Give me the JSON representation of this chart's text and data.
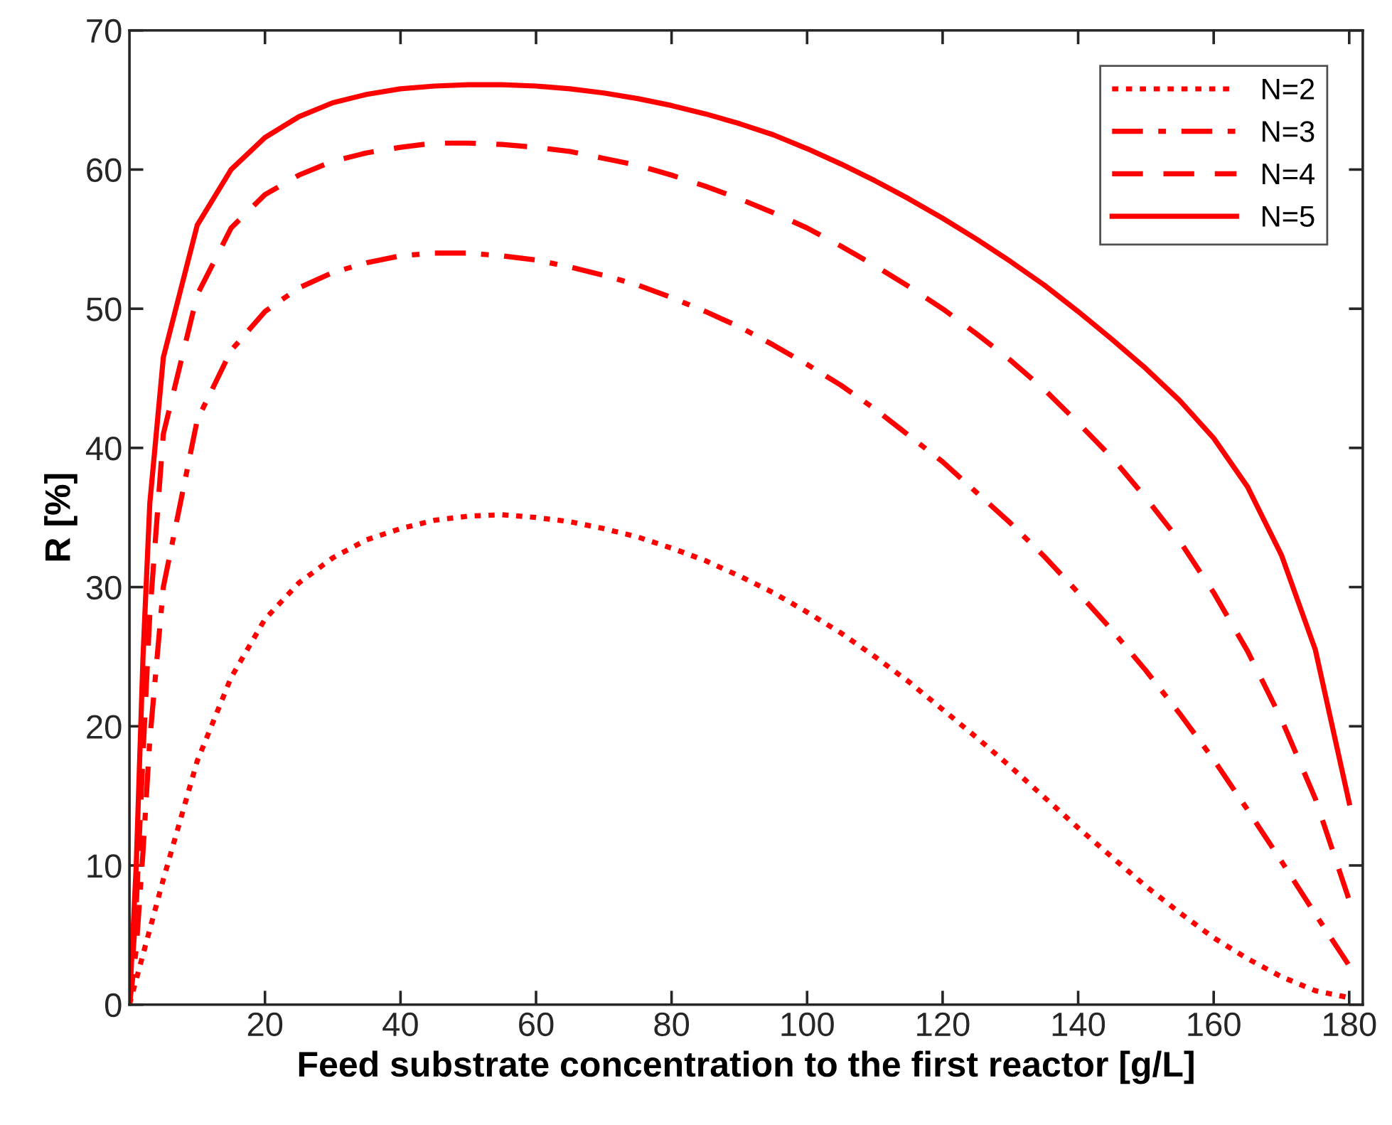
{
  "chart_data": {
    "type": "line",
    "xlabel": "Feed substrate concentration to the first reactor [g/L]",
    "ylabel": "R [%]",
    "xlim": [
      0,
      182
    ],
    "xticks": [
      20,
      40,
      60,
      80,
      100,
      120,
      140,
      160,
      180
    ],
    "ylim": [
      0,
      70
    ],
    "yticks": [
      0,
      10,
      20,
      30,
      40,
      50,
      60,
      70
    ],
    "grid": false,
    "legend": "top right",
    "marker": "none",
    "x": [
      0,
      1,
      2,
      3,
      5,
      10,
      15,
      20,
      25,
      30,
      35,
      40,
      45,
      50,
      55,
      60,
      65,
      70,
      75,
      80,
      85,
      90,
      95,
      100,
      105,
      110,
      115,
      120,
      125,
      130,
      135,
      140,
      145,
      150,
      155,
      160,
      165,
      170,
      175,
      180
    ],
    "series": [
      {
        "name": "N=2",
        "color": "#ff0000",
        "line_style": "dotted",
        "values": [
          0,
          1.8,
          3.6,
          5.4,
          9,
          17.5,
          23.5,
          27.7,
          30.3,
          32.1,
          33.4,
          34.2,
          34.8,
          35.1,
          35.2,
          35.0,
          34.7,
          34.2,
          33.6,
          32.8,
          31.9,
          30.8,
          29.6,
          28.2,
          26.7,
          25.0,
          23.2,
          21.2,
          19.2,
          17.1,
          14.9,
          12.7,
          10.6,
          8.5,
          6.6,
          4.8,
          3.3,
          2.0,
          1.0,
          0.5
        ]
      },
      {
        "name": "N=3",
        "color": "#ff0000",
        "line_style": "dashdot",
        "values": [
          0,
          4,
          11,
          19,
          30,
          42,
          47,
          49.8,
          51.5,
          52.6,
          53.3,
          53.8,
          54.0,
          54.0,
          53.8,
          53.5,
          53.0,
          52.4,
          51.7,
          50.8,
          49.8,
          48.7,
          47.4,
          46.0,
          44.5,
          42.8,
          40.9,
          39.0,
          36.8,
          34.6,
          32.2,
          29.6,
          26.9,
          24.0,
          20.9,
          17.6,
          14.0,
          10.3,
          6.5,
          2.8
        ]
      },
      {
        "name": "N=4",
        "color": "#ff0000",
        "line_style": "dashed",
        "values": [
          0,
          7,
          18,
          28,
          41,
          51,
          55.8,
          58.2,
          59.6,
          60.6,
          61.2,
          61.6,
          61.9,
          61.9,
          61.8,
          61.6,
          61.3,
          60.8,
          60.3,
          59.6,
          58.8,
          57.9,
          56.9,
          55.8,
          54.5,
          53.1,
          51.6,
          50.0,
          48.2,
          46.3,
          44.2,
          41.8,
          39.3,
          36.4,
          33.3,
          29.6,
          25.4,
          20.5,
          14.8,
          7.5
        ]
      },
      {
        "name": "N=5",
        "color": "#ff0000",
        "line_style": "solid",
        "values": [
          0,
          10,
          25,
          36,
          46.5,
          56,
          60,
          62.3,
          63.8,
          64.8,
          65.4,
          65.8,
          66.0,
          66.1,
          66.1,
          66.0,
          65.8,
          65.5,
          65.1,
          64.6,
          64.0,
          63.3,
          62.5,
          61.5,
          60.4,
          59.2,
          57.9,
          56.5,
          55.0,
          53.4,
          51.7,
          49.8,
          47.8,
          45.7,
          43.4,
          40.7,
          37.2,
          32.3,
          25.5,
          14.5
        ]
      }
    ]
  }
}
